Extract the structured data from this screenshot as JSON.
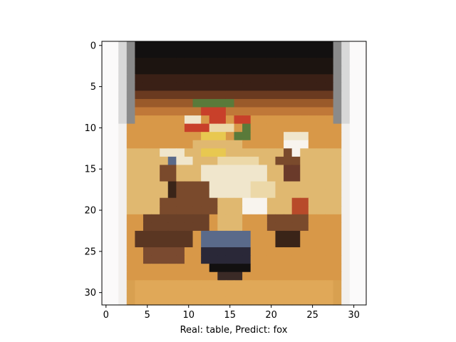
{
  "figure": {
    "caption": "Real: table, Predict: fox"
  },
  "image": {
    "description_tag": "pixelated-food-plate",
    "grid_size": [
      32,
      32
    ],
    "palette": {
      "black": "#121010",
      "dark_brown": "#3a2418",
      "brown": "#7a4a2c",
      "orange_brown": "#c07838",
      "orange": "#d89848",
      "tan": "#e0b870",
      "light_tan": "#ecd8a8",
      "cream": "#f0e6cc",
      "white": "#f8f4ee",
      "gray": "#8a8a8a",
      "light_gray": "#c8c8c8",
      "red": "#c8402a",
      "green": "#5a7a3a",
      "yellow": "#e8c850",
      "blue_gray": "#5a6a8a"
    }
  },
  "axes": {
    "x_ticks": [
      "0",
      "5",
      "10",
      "15",
      "20",
      "25",
      "30"
    ],
    "y_ticks": [
      "0",
      "5",
      "10",
      "15",
      "20",
      "25",
      "30"
    ],
    "x_tick_values": [
      0,
      5,
      10,
      15,
      20,
      25,
      30
    ],
    "y_tick_values": [
      0,
      5,
      10,
      15,
      20,
      25,
      30
    ],
    "xlim": [
      -0.5,
      31.5
    ],
    "ylim": [
      31.5,
      -0.5
    ]
  }
}
